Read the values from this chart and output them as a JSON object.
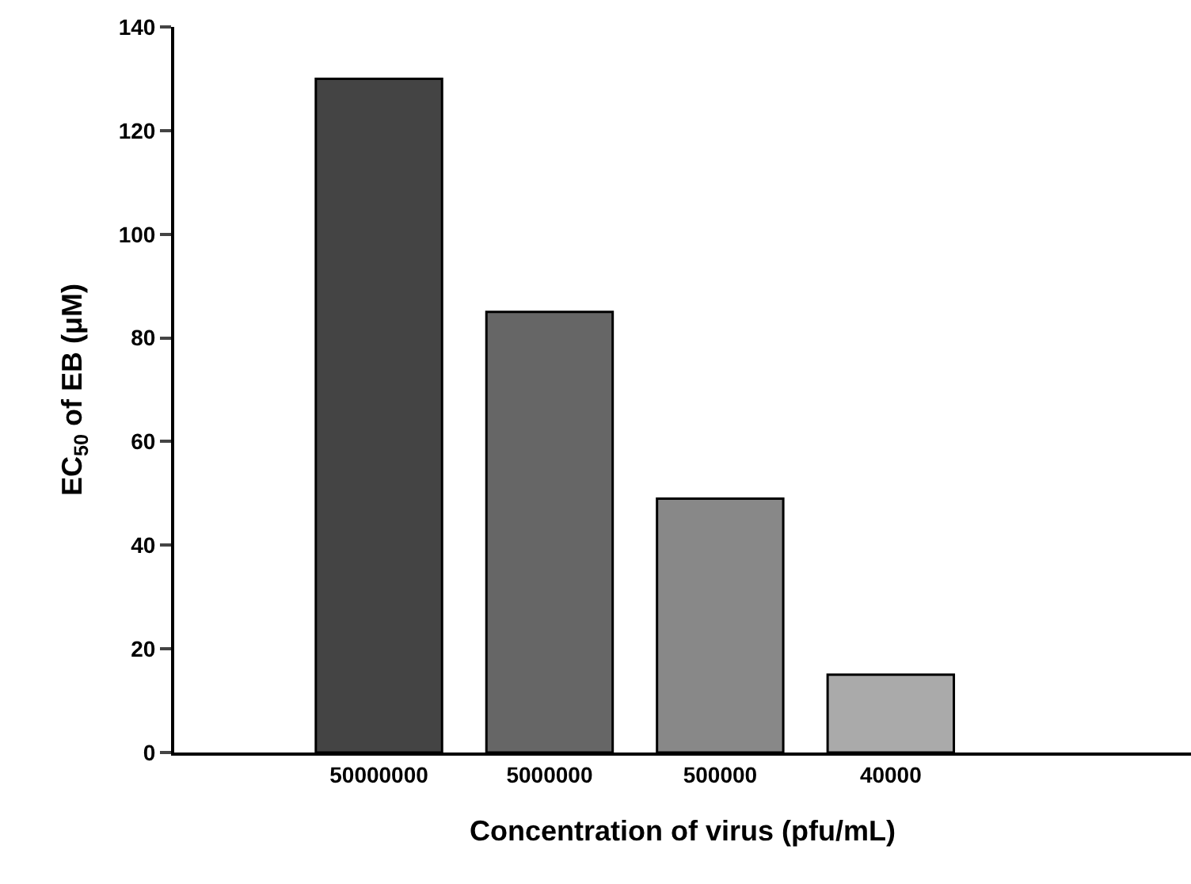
{
  "chart_data": {
    "type": "bar",
    "xlabel": "Concentration of virus (pfu/mL)",
    "ylabel": "EC$_{50}$ of EB (μM)",
    "categories": [
      "50000000",
      "5000000",
      "500000",
      "40000"
    ],
    "values": [
      130,
      85,
      49,
      15
    ],
    "colors": [
      "#444444",
      "#666666",
      "#888888",
      "#aaaaaa"
    ],
    "ylim": [
      0,
      140
    ],
    "yticks": [
      0,
      20,
      40,
      60,
      80,
      100,
      120,
      140
    ],
    "grid": false
  }
}
